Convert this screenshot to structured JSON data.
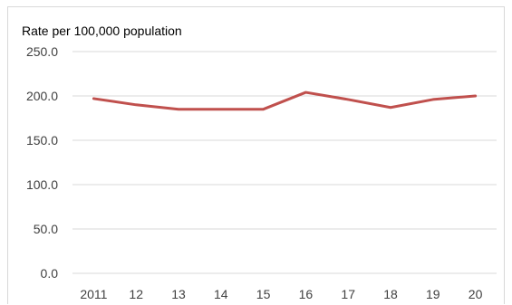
{
  "chart_data": {
    "type": "line",
    "ylabel": "Rate per 100,000 population",
    "categories": [
      "2011",
      "12",
      "13",
      "14",
      "15",
      "16",
      "17",
      "18",
      "19",
      "20"
    ],
    "series": [
      {
        "values": [
          197,
          190,
          185,
          185,
          185,
          204,
          196,
          187,
          196,
          200
        ],
        "color": "#c0504d"
      }
    ],
    "ylim": [
      0,
      250
    ],
    "yticks": [
      "0.0",
      "50.0",
      "100.0",
      "150.0",
      "200.0",
      "250.0"
    ],
    "grid": true,
    "gridColor": "#d9d9d9"
  }
}
